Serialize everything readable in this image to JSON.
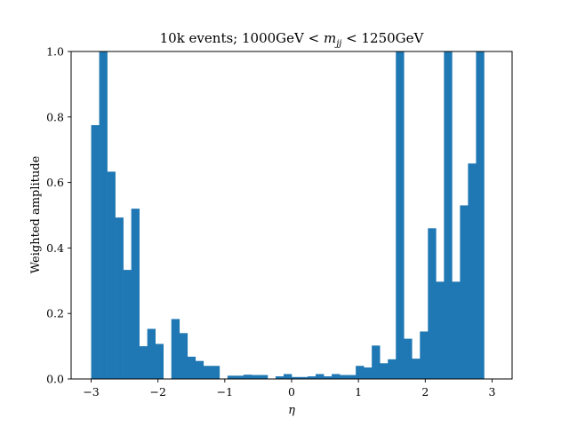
{
  "chart_data": {
    "type": "bar",
    "title": {
      "prefix": "10k events; 1000GeV < ",
      "var_main": "m",
      "var_sub": "jj",
      "suffix": " < 1250GeV"
    },
    "xlabel": "η",
    "ylabel": "Weighted amplitude",
    "xlim": [
      -3.3,
      3.3
    ],
    "ylim": [
      0.0,
      1.0
    ],
    "xticks": [
      -3,
      -2,
      -1,
      0,
      1,
      2,
      3
    ],
    "xtick_labels": [
      "−3",
      "−2",
      "−1",
      "0",
      "1",
      "2",
      "3"
    ],
    "yticks": [
      0.0,
      0.2,
      0.4,
      0.6,
      0.8,
      1.0
    ],
    "ytick_labels": [
      "0.0",
      "0.2",
      "0.4",
      "0.6",
      "0.8",
      "1.0"
    ],
    "bin_start": -3.0,
    "bin_width": 0.12,
    "bin_values": [
      0.775,
      1.0,
      0.633,
      0.493,
      0.333,
      0.52,
      0.1,
      0.153,
      0.107,
      0.0,
      0.183,
      0.14,
      0.068,
      0.055,
      0.04,
      0.04,
      0.0,
      0.01,
      0.01,
      0.013,
      0.012,
      0.012,
      0.0,
      0.008,
      0.015,
      0.006,
      0.006,
      0.008,
      0.015,
      0.008,
      0.015,
      0.012,
      0.012,
      0.04,
      0.035,
      0.102,
      0.048,
      0.06,
      1.0,
      0.123,
      0.062,
      0.145,
      0.46,
      0.297,
      1.0,
      0.297,
      0.53,
      0.658,
      1.0,
      0.0
    ],
    "bar_color": "#1f77b4",
    "grid": false,
    "legend": "none"
  }
}
